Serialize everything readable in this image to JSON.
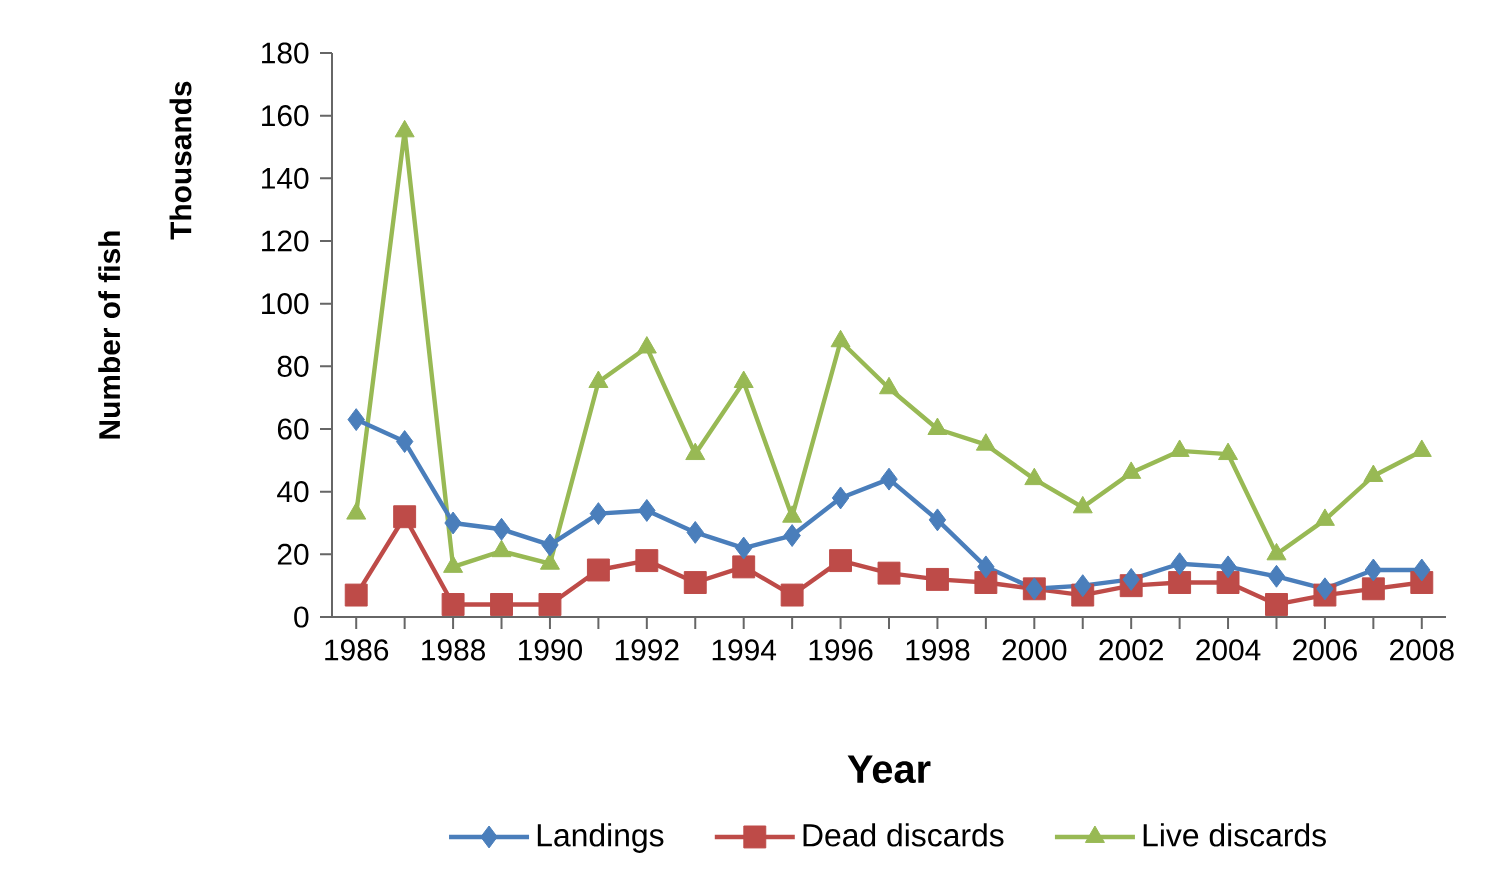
{
  "chart_data": {
    "type": "line",
    "xlabel": "Year",
    "ylabel": "Number of fish",
    "annotations": [
      "Thousands"
    ],
    "x": [
      1986,
      1987,
      1988,
      1989,
      1990,
      1991,
      1992,
      1993,
      1994,
      1995,
      1996,
      1997,
      1998,
      1999,
      2000,
      2001,
      2002,
      2003,
      2004,
      2005,
      2006,
      2007,
      2008
    ],
    "series": [
      {
        "name": "Landings",
        "color": "#4a7ebb",
        "marker": "diamond",
        "values": [
          63,
          56,
          30,
          28,
          23,
          33,
          34,
          27,
          22,
          26,
          38,
          44,
          31,
          16,
          9,
          10,
          12,
          17,
          16,
          13,
          9,
          15,
          15
        ]
      },
      {
        "name": "Dead discards",
        "color": "#be4b48",
        "marker": "square",
        "values": [
          7,
          32,
          4,
          4,
          4,
          15,
          18,
          11,
          16,
          7,
          18,
          14,
          12,
          11,
          9,
          7,
          10,
          11,
          11,
          4,
          7,
          9,
          11
        ]
      },
      {
        "name": "Live discards",
        "color": "#98b954",
        "marker": "triangle",
        "values": [
          33,
          155,
          16,
          21,
          17,
          75,
          86,
          52,
          75,
          32,
          88,
          73,
          60,
          55,
          44,
          35,
          46,
          53,
          52,
          20,
          31,
          45,
          53
        ]
      }
    ],
    "xlim": [
      1985.5,
      2008.5
    ],
    "xticks": [
      1986,
      1988,
      1990,
      1992,
      1994,
      1996,
      1998,
      2000,
      2002,
      2004,
      2006,
      2008
    ],
    "ylim": [
      0,
      180
    ],
    "yticks": [
      0,
      20,
      40,
      60,
      80,
      100,
      120,
      140,
      160,
      180
    ],
    "legend": "bottom",
    "line_style": "solid"
  }
}
